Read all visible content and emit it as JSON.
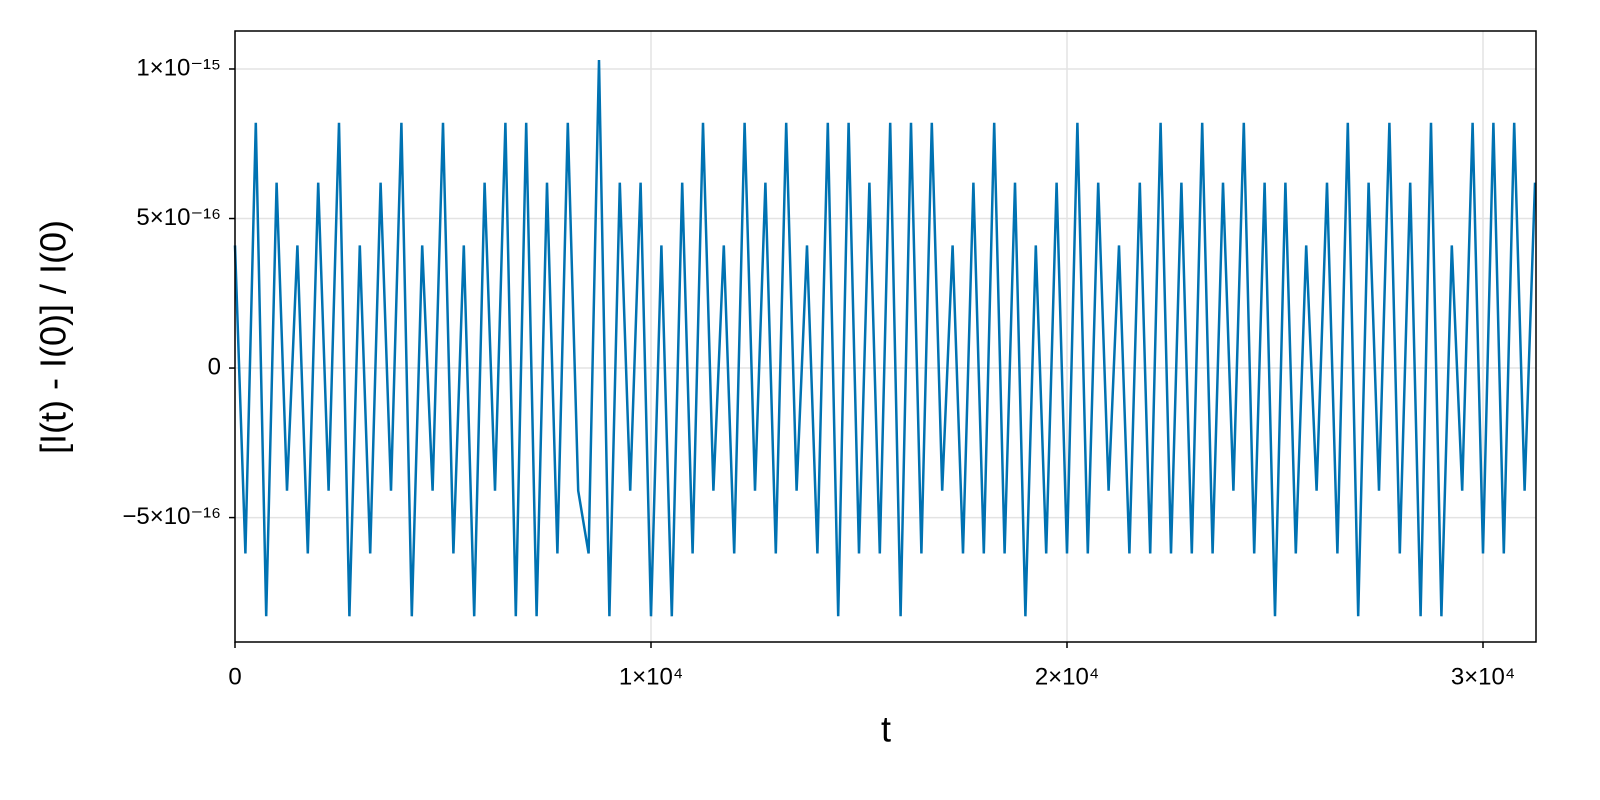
{
  "chart_data": {
    "type": "line",
    "xlabel": "t",
    "ylabel": "[I(t) - I(0)] / I(0)",
    "x": [
      0,
      250,
      500,
      750,
      1000,
      1250,
      1500,
      1750,
      2000,
      2250,
      2500,
      2750,
      3000,
      3250,
      3500,
      3750,
      4000,
      4250,
      4500,
      4750,
      5000,
      5250,
      5500,
      5750,
      6000,
      6250,
      6500,
      6750,
      7000,
      7250,
      7500,
      7750,
      8000,
      8250,
      8500,
      8750,
      9000,
      9250,
      9500,
      9750,
      10000,
      10250,
      10500,
      10750,
      11000,
      11250,
      11500,
      11750,
      12000,
      12250,
      12500,
      12750,
      13000,
      13250,
      13500,
      13750,
      14000,
      14250,
      14500,
      14750,
      15000,
      15250,
      15500,
      15750,
      16000,
      16250,
      16500,
      16750,
      17000,
      17250,
      17500,
      17750,
      18000,
      18250,
      18500,
      18750,
      19000,
      19250,
      19500,
      19750,
      20000,
      20250,
      20500,
      20750,
      21000,
      21250,
      21500,
      21750,
      22000,
      22250,
      22500,
      22750,
      23000,
      23250,
      23500,
      23750,
      24000,
      24250,
      24500,
      24750,
      25000,
      25250,
      25500,
      25750,
      26000,
      26250,
      26500,
      26750,
      27000,
      27250,
      27500,
      27750,
      28000,
      28250,
      28500,
      28750,
      29000,
      29250,
      29500,
      29750,
      30000,
      30250,
      30500,
      30750,
      31000,
      31250
    ],
    "values": [
      4.1e-16,
      -6.2e-16,
      8.2e-16,
      -8.3e-16,
      6.2e-16,
      -4.1e-16,
      4.1e-16,
      -6.2e-16,
      6.2e-16,
      -4.1e-16,
      8.2e-16,
      -8.3e-16,
      4.1e-16,
      -6.2e-16,
      6.2e-16,
      -4.1e-16,
      8.2e-16,
      -8.3e-16,
      4.1e-16,
      -4.1e-16,
      8.2e-16,
      -6.2e-16,
      4.1e-16,
      -8.3e-16,
      6.2e-16,
      -4.1e-16,
      8.2e-16,
      -8.3e-16,
      8.2e-16,
      -8.3e-16,
      6.2e-16,
      -6.2e-16,
      8.2e-16,
      -4.1e-16,
      -6.2e-16,
      1.03e-15,
      -8.3e-16,
      6.2e-16,
      -4.1e-16,
      6.2e-16,
      -8.3e-16,
      4.1e-16,
      -8.3e-16,
      6.2e-16,
      -6.2e-16,
      8.2e-16,
      -4.1e-16,
      4.1e-16,
      -6.2e-16,
      8.2e-16,
      -4.1e-16,
      6.2e-16,
      -6.2e-16,
      8.2e-16,
      -4.1e-16,
      4.1e-16,
      -6.2e-16,
      8.2e-16,
      -8.3e-16,
      8.2e-16,
      -6.2e-16,
      6.2e-16,
      -6.2e-16,
      8.2e-16,
      -8.3e-16,
      8.2e-16,
      -6.2e-16,
      8.2e-16,
      -4.1e-16,
      4.1e-16,
      -6.2e-16,
      6.2e-16,
      -6.2e-16,
      8.2e-16,
      -6.2e-16,
      6.2e-16,
      -8.3e-16,
      4.1e-16,
      -6.2e-16,
      6.2e-16,
      -6.2e-16,
      8.2e-16,
      -6.2e-16,
      6.2e-16,
      -4.1e-16,
      4.1e-16,
      -6.2e-16,
      6.2e-16,
      -6.2e-16,
      8.2e-16,
      -6.2e-16,
      6.2e-16,
      -6.2e-16,
      8.2e-16,
      -6.2e-16,
      6.2e-16,
      -4.1e-16,
      8.2e-16,
      -6.2e-16,
      6.2e-16,
      -8.3e-16,
      6.2e-16,
      -6.2e-16,
      4.1e-16,
      -4.1e-16,
      6.2e-16,
      -6.2e-16,
      8.2e-16,
      -8.3e-16,
      6.2e-16,
      -4.1e-16,
      8.2e-16,
      -6.2e-16,
      6.2e-16,
      -8.3e-16,
      8.2e-16,
      -8.3e-16,
      4.1e-16,
      -4.1e-16,
      8.2e-16,
      -6.2e-16,
      8.2e-16,
      -6.2e-16,
      8.2e-16,
      -4.1e-16,
      6.2e-16
    ],
    "color": "#0072b2",
    "xlim": [
      0,
      31274
    ],
    "ylim": [
      -9.16e-16,
      1.127e-15
    ],
    "xticks": [
      0,
      {
        "value": 10000,
        "label": "1×10⁴"
      },
      {
        "value": 20000,
        "label": "2×10⁴"
      },
      {
        "value": 30000,
        "label": "3×10⁴"
      }
    ],
    "yticks": [
      {
        "value": -5e-16,
        "label": "−5×10⁻¹⁶"
      },
      0,
      {
        "value": 5e-16,
        "label": "5×10⁻¹⁶"
      },
      {
        "value": 1e-15,
        "label": "1×10⁻¹⁵"
      }
    ],
    "grid": true
  }
}
